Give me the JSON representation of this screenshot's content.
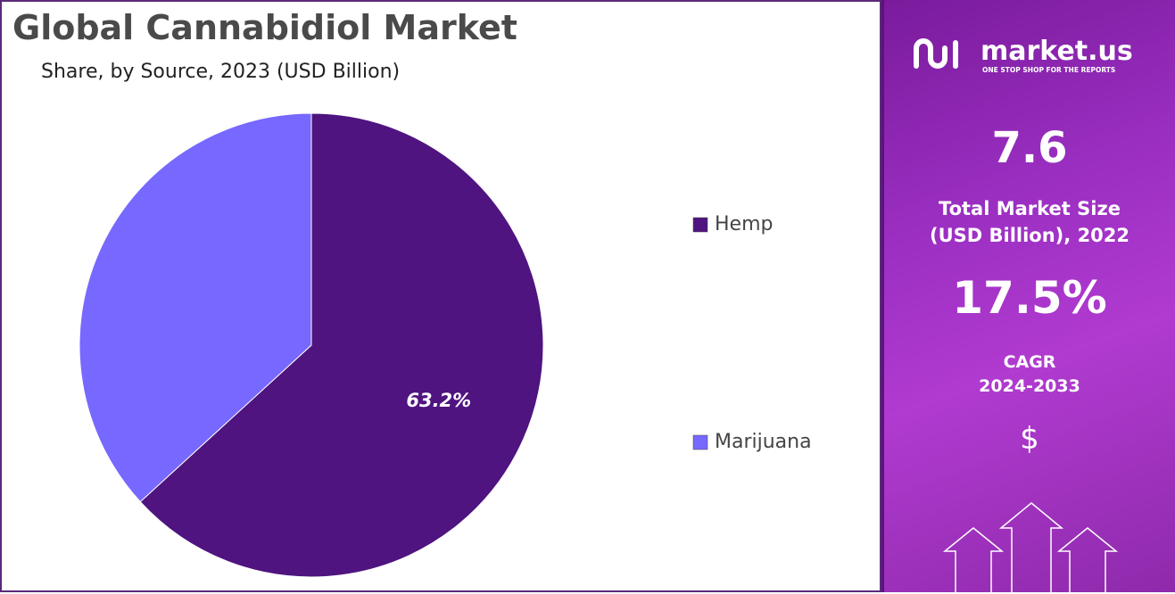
{
  "chart_data": {
    "type": "pie",
    "title": "Global Cannabidiol Market",
    "subtitle": "Share, by Source, 2023 (USD Billion)",
    "categories": [
      "Hemp",
      "Marijuana"
    ],
    "values": [
      63.2,
      36.8
    ],
    "value_labels": [
      "63.2%",
      null
    ],
    "colors": [
      "#4f1480",
      "#7768ff"
    ],
    "legend": "right"
  },
  "sidebar": {
    "brand": "market.us",
    "tagline": "ONE STOP SHOP FOR THE REPORTS",
    "market_size": "7.6",
    "market_size_label": [
      "Total Market Size",
      "(USD Billion), 2022"
    ],
    "cagr": "17.5%",
    "cagr_label": [
      "CAGR",
      "2024-2033"
    ],
    "currency_icon": "$"
  }
}
